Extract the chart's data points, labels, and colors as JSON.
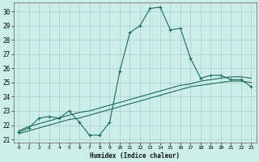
{
  "xlabel": "Humidex (Indice chaleur)",
  "bg_color": "#cceee8",
  "grid_color": "#aacccc",
  "line_color": "#1a6b5a",
  "xlim": [
    -0.5,
    23.5
  ],
  "ylim": [
    20.8,
    30.6
  ],
  "xticks": [
    0,
    1,
    2,
    3,
    4,
    5,
    6,
    7,
    8,
    9,
    10,
    11,
    12,
    13,
    14,
    15,
    16,
    17,
    18,
    19,
    20,
    21,
    22,
    23
  ],
  "yticks": [
    21,
    22,
    23,
    24,
    25,
    26,
    27,
    28,
    29,
    30
  ],
  "main_x": [
    0,
    1,
    2,
    3,
    4,
    5,
    6,
    7,
    8,
    9,
    10,
    11,
    12,
    13,
    14,
    15,
    16,
    17,
    18,
    19,
    20,
    21,
    22,
    23
  ],
  "main_y": [
    21.5,
    21.8,
    22.5,
    22.6,
    22.5,
    23.0,
    22.2,
    21.3,
    21.3,
    22.2,
    25.8,
    28.5,
    29.0,
    30.2,
    30.3,
    28.7,
    28.8,
    26.7,
    25.3,
    25.5,
    25.5,
    25.2,
    25.2,
    24.7
  ],
  "line2_x": [
    0,
    1,
    2,
    3,
    4,
    5,
    6,
    7,
    8,
    9,
    10,
    11,
    12,
    13,
    14,
    15,
    16,
    17,
    18,
    19,
    20,
    21,
    22,
    23
  ],
  "line2_y": [
    21.6,
    21.9,
    22.1,
    22.3,
    22.5,
    22.7,
    22.9,
    23.0,
    23.2,
    23.4,
    23.6,
    23.8,
    24.0,
    24.2,
    24.4,
    24.6,
    24.8,
    24.9,
    25.1,
    25.2,
    25.3,
    25.4,
    25.4,
    25.3
  ],
  "line3_x": [
    0,
    1,
    2,
    3,
    4,
    5,
    6,
    7,
    8,
    9,
    10,
    11,
    12,
    13,
    14,
    15,
    16,
    17,
    18,
    19,
    20,
    21,
    22,
    23
  ],
  "line3_y": [
    21.4,
    21.6,
    21.8,
    22.0,
    22.2,
    22.4,
    22.5,
    22.7,
    22.9,
    23.1,
    23.3,
    23.5,
    23.7,
    23.9,
    24.1,
    24.3,
    24.5,
    24.7,
    24.8,
    24.9,
    25.0,
    25.1,
    25.1,
    25.0
  ]
}
